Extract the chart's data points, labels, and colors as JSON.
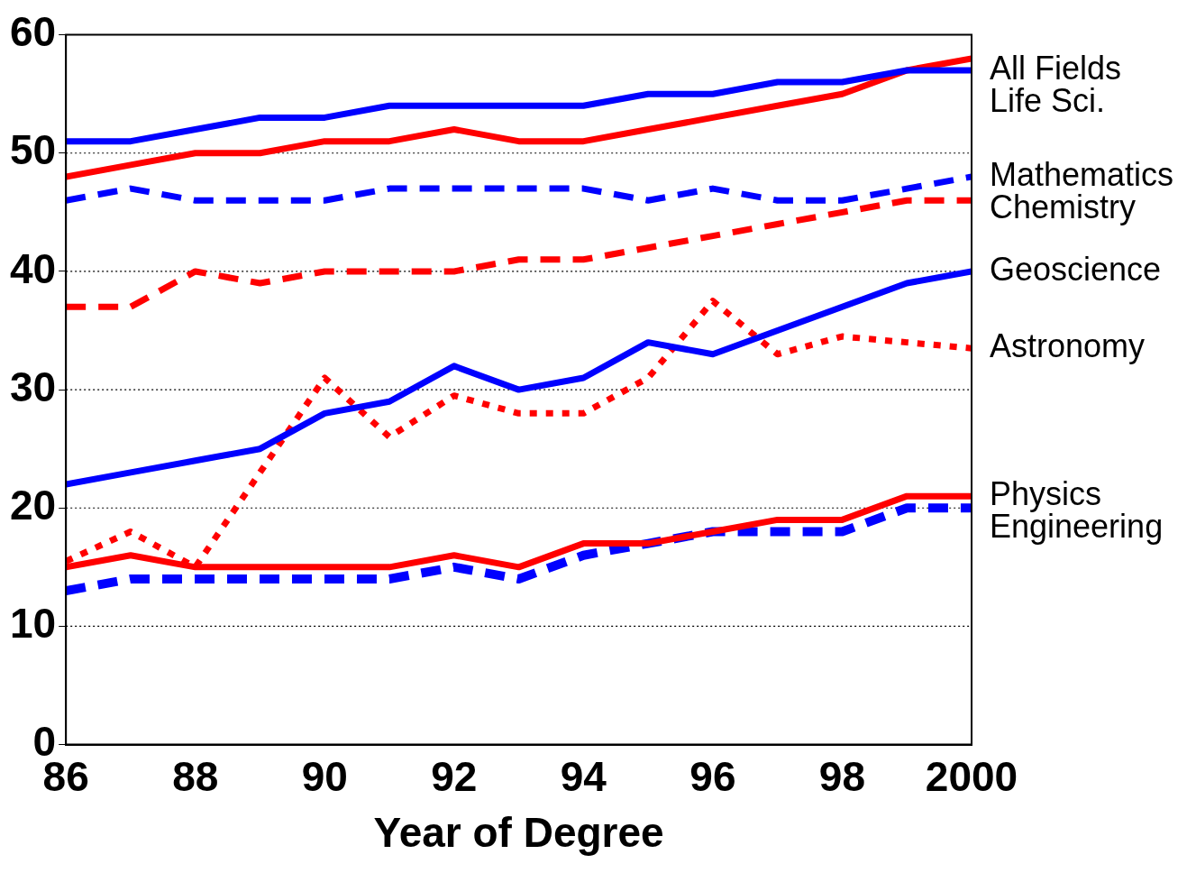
{
  "chart_data": {
    "type": "line",
    "xlabel": "Year of Degree",
    "x": [
      1986,
      1987,
      1988,
      1989,
      1990,
      1991,
      1992,
      1993,
      1994,
      1995,
      1996,
      1997,
      1998,
      1999,
      2000
    ],
    "xlim": [
      1986,
      2000
    ],
    "xticks": [
      {
        "value": 1986,
        "label": "86"
      },
      {
        "value": 1988,
        "label": "88"
      },
      {
        "value": 1990,
        "label": "90"
      },
      {
        "value": 1992,
        "label": "92"
      },
      {
        "value": 1994,
        "label": "94"
      },
      {
        "value": 1996,
        "label": "96"
      },
      {
        "value": 1998,
        "label": "98"
      },
      2000
    ],
    "ylim": [
      0,
      60
    ],
    "yticks": [
      0,
      10,
      20,
      30,
      40,
      50,
      60
    ],
    "grid": "y",
    "legend": false,
    "marker": "none",
    "series": [
      {
        "name": "All Fields",
        "color": "#0000ff",
        "line_style": "solid",
        "values": [
          51,
          51,
          52,
          53,
          53,
          54,
          54,
          54,
          54,
          55,
          55,
          56,
          56,
          57,
          57
        ]
      },
      {
        "name": "Life Sci.",
        "color": "#ff0000",
        "line_style": "solid",
        "values": [
          48,
          49,
          50,
          50,
          51,
          51,
          52,
          51,
          51,
          52,
          53,
          54,
          55,
          57,
          58
        ]
      },
      {
        "name": "Mathematics",
        "color": "#0000ff",
        "line_style": "dashed",
        "values": [
          46,
          47,
          46,
          46,
          46,
          47,
          47,
          47,
          47,
          46,
          47,
          46,
          46,
          47,
          48
        ]
      },
      {
        "name": "Chemistry",
        "color": "#ff0000",
        "line_style": "dashed",
        "values": [
          37,
          37,
          40,
          39,
          40,
          40,
          40,
          41,
          41,
          42,
          43,
          44,
          45,
          46,
          46
        ]
      },
      {
        "name": "Geoscience",
        "color": "#0000ff",
        "line_style": "solid",
        "values": [
          22,
          23,
          24,
          25,
          28,
          29,
          32,
          30,
          31,
          34,
          33,
          35,
          37,
          39,
          40
        ]
      },
      {
        "name": "Astronomy",
        "color": "#ff0000",
        "line_style": "dotted",
        "values": [
          15.5,
          18,
          15,
          23,
          31,
          26,
          29.5,
          28,
          28,
          31,
          37.5,
          33,
          34.5,
          34,
          33.5
        ]
      },
      {
        "name": "Physics",
        "color": "#ff0000",
        "line_style": "solid",
        "values": [
          15,
          16,
          15,
          15,
          15,
          15,
          16,
          15,
          17,
          17,
          18,
          19,
          19,
          21,
          21
        ]
      },
      {
        "name": "Engineering",
        "color": "#0000ff",
        "line_style": "dashed",
        "values": [
          13,
          14,
          14,
          14,
          14,
          14,
          15,
          14,
          16,
          17,
          18,
          18,
          18,
          20,
          20
        ]
      }
    ]
  }
}
